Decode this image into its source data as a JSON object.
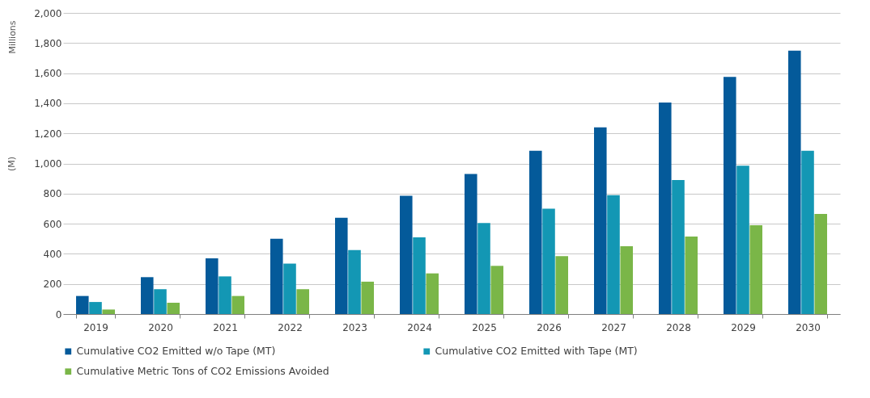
{
  "chart_data": {
    "type": "bar",
    "ylabel": "(M)",
    "annotations": [
      "Millions"
    ],
    "categories": [
      "2019",
      "2020",
      "2021",
      "2022",
      "2023",
      "2024",
      "2025",
      "2026",
      "2027",
      "2028",
      "2029",
      "2030"
    ],
    "series": [
      {
        "name": "Cumulative CO2 Emitted w/o Tape (MT)",
        "color": "#045a9a",
        "values": [
          120,
          245,
          370,
          500,
          640,
          785,
          930,
          1085,
          1240,
          1405,
          1575,
          1750
        ]
      },
      {
        "name": "Cumulative CO2 Emitted with Tape (MT)",
        "color": "#1397b4",
        "values": [
          80,
          165,
          250,
          335,
          425,
          510,
          605,
          700,
          790,
          890,
          985,
          1085
        ]
      },
      {
        "name": "Cumulative Metric  Tons of CO2 Emissions Avoided",
        "color": "#7ab648",
        "values": [
          30,
          75,
          120,
          165,
          215,
          270,
          320,
          385,
          450,
          515,
          590,
          665
        ]
      }
    ],
    "ylim": [
      0,
      2000
    ],
    "yticks": [
      0,
      200,
      400,
      600,
      800,
      {
        "value": 1000,
        "label": "1,000"
      },
      {
        "value": 1200,
        "label": "1,200"
      },
      {
        "value": 1400,
        "label": "1,400"
      },
      {
        "value": 1600,
        "label": "1,600"
      },
      {
        "value": 1800,
        "label": "1,800"
      },
      {
        "value": 2000,
        "label": "2,000"
      }
    ],
    "grid": "y",
    "legend": "bottom"
  }
}
